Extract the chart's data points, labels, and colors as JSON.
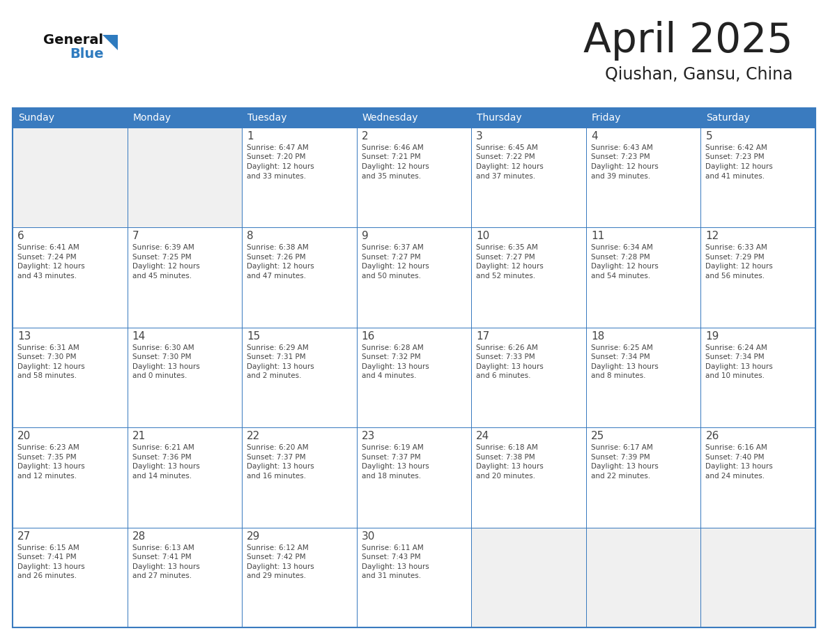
{
  "title": "April 2025",
  "subtitle": "Qiushan, Gansu, China",
  "days_of_week": [
    "Sunday",
    "Monday",
    "Tuesday",
    "Wednesday",
    "Thursday",
    "Friday",
    "Saturday"
  ],
  "header_bg": "#3a7bbf",
  "header_text": "#ffffff",
  "cell_bg_light": "#f0f0f0",
  "cell_bg_white": "#ffffff",
  "border_color": "#3a7bbf",
  "text_color": "#444444",
  "title_color": "#222222",
  "subtitle_color": "#222222",
  "logo_general_color": "#111111",
  "logo_blue_color": "#2e7bbf",
  "weeks": [
    [
      {
        "day": "",
        "sunrise": "",
        "sunset": "",
        "daylight": ""
      },
      {
        "day": "",
        "sunrise": "",
        "sunset": "",
        "daylight": ""
      },
      {
        "day": "1",
        "sunrise": "Sunrise: 6:47 AM",
        "sunset": "Sunset: 7:20 PM",
        "daylight": "Daylight: 12 hours\nand 33 minutes."
      },
      {
        "day": "2",
        "sunrise": "Sunrise: 6:46 AM",
        "sunset": "Sunset: 7:21 PM",
        "daylight": "Daylight: 12 hours\nand 35 minutes."
      },
      {
        "day": "3",
        "sunrise": "Sunrise: 6:45 AM",
        "sunset": "Sunset: 7:22 PM",
        "daylight": "Daylight: 12 hours\nand 37 minutes."
      },
      {
        "day": "4",
        "sunrise": "Sunrise: 6:43 AM",
        "sunset": "Sunset: 7:23 PM",
        "daylight": "Daylight: 12 hours\nand 39 minutes."
      },
      {
        "day": "5",
        "sunrise": "Sunrise: 6:42 AM",
        "sunset": "Sunset: 7:23 PM",
        "daylight": "Daylight: 12 hours\nand 41 minutes."
      }
    ],
    [
      {
        "day": "6",
        "sunrise": "Sunrise: 6:41 AM",
        "sunset": "Sunset: 7:24 PM",
        "daylight": "Daylight: 12 hours\nand 43 minutes."
      },
      {
        "day": "7",
        "sunrise": "Sunrise: 6:39 AM",
        "sunset": "Sunset: 7:25 PM",
        "daylight": "Daylight: 12 hours\nand 45 minutes."
      },
      {
        "day": "8",
        "sunrise": "Sunrise: 6:38 AM",
        "sunset": "Sunset: 7:26 PM",
        "daylight": "Daylight: 12 hours\nand 47 minutes."
      },
      {
        "day": "9",
        "sunrise": "Sunrise: 6:37 AM",
        "sunset": "Sunset: 7:27 PM",
        "daylight": "Daylight: 12 hours\nand 50 minutes."
      },
      {
        "day": "10",
        "sunrise": "Sunrise: 6:35 AM",
        "sunset": "Sunset: 7:27 PM",
        "daylight": "Daylight: 12 hours\nand 52 minutes."
      },
      {
        "day": "11",
        "sunrise": "Sunrise: 6:34 AM",
        "sunset": "Sunset: 7:28 PM",
        "daylight": "Daylight: 12 hours\nand 54 minutes."
      },
      {
        "day": "12",
        "sunrise": "Sunrise: 6:33 AM",
        "sunset": "Sunset: 7:29 PM",
        "daylight": "Daylight: 12 hours\nand 56 minutes."
      }
    ],
    [
      {
        "day": "13",
        "sunrise": "Sunrise: 6:31 AM",
        "sunset": "Sunset: 7:30 PM",
        "daylight": "Daylight: 12 hours\nand 58 minutes."
      },
      {
        "day": "14",
        "sunrise": "Sunrise: 6:30 AM",
        "sunset": "Sunset: 7:30 PM",
        "daylight": "Daylight: 13 hours\nand 0 minutes."
      },
      {
        "day": "15",
        "sunrise": "Sunrise: 6:29 AM",
        "sunset": "Sunset: 7:31 PM",
        "daylight": "Daylight: 13 hours\nand 2 minutes."
      },
      {
        "day": "16",
        "sunrise": "Sunrise: 6:28 AM",
        "sunset": "Sunset: 7:32 PM",
        "daylight": "Daylight: 13 hours\nand 4 minutes."
      },
      {
        "day": "17",
        "sunrise": "Sunrise: 6:26 AM",
        "sunset": "Sunset: 7:33 PM",
        "daylight": "Daylight: 13 hours\nand 6 minutes."
      },
      {
        "day": "18",
        "sunrise": "Sunrise: 6:25 AM",
        "sunset": "Sunset: 7:34 PM",
        "daylight": "Daylight: 13 hours\nand 8 minutes."
      },
      {
        "day": "19",
        "sunrise": "Sunrise: 6:24 AM",
        "sunset": "Sunset: 7:34 PM",
        "daylight": "Daylight: 13 hours\nand 10 minutes."
      }
    ],
    [
      {
        "day": "20",
        "sunrise": "Sunrise: 6:23 AM",
        "sunset": "Sunset: 7:35 PM",
        "daylight": "Daylight: 13 hours\nand 12 minutes."
      },
      {
        "day": "21",
        "sunrise": "Sunrise: 6:21 AM",
        "sunset": "Sunset: 7:36 PM",
        "daylight": "Daylight: 13 hours\nand 14 minutes."
      },
      {
        "day": "22",
        "sunrise": "Sunrise: 6:20 AM",
        "sunset": "Sunset: 7:37 PM",
        "daylight": "Daylight: 13 hours\nand 16 minutes."
      },
      {
        "day": "23",
        "sunrise": "Sunrise: 6:19 AM",
        "sunset": "Sunset: 7:37 PM",
        "daylight": "Daylight: 13 hours\nand 18 minutes."
      },
      {
        "day": "24",
        "sunrise": "Sunrise: 6:18 AM",
        "sunset": "Sunset: 7:38 PM",
        "daylight": "Daylight: 13 hours\nand 20 minutes."
      },
      {
        "day": "25",
        "sunrise": "Sunrise: 6:17 AM",
        "sunset": "Sunset: 7:39 PM",
        "daylight": "Daylight: 13 hours\nand 22 minutes."
      },
      {
        "day": "26",
        "sunrise": "Sunrise: 6:16 AM",
        "sunset": "Sunset: 7:40 PM",
        "daylight": "Daylight: 13 hours\nand 24 minutes."
      }
    ],
    [
      {
        "day": "27",
        "sunrise": "Sunrise: 6:15 AM",
        "sunset": "Sunset: 7:41 PM",
        "daylight": "Daylight: 13 hours\nand 26 minutes."
      },
      {
        "day": "28",
        "sunrise": "Sunrise: 6:13 AM",
        "sunset": "Sunset: 7:41 PM",
        "daylight": "Daylight: 13 hours\nand 27 minutes."
      },
      {
        "day": "29",
        "sunrise": "Sunrise: 6:12 AM",
        "sunset": "Sunset: 7:42 PM",
        "daylight": "Daylight: 13 hours\nand 29 minutes."
      },
      {
        "day": "30",
        "sunrise": "Sunrise: 6:11 AM",
        "sunset": "Sunset: 7:43 PM",
        "daylight": "Daylight: 13 hours\nand 31 minutes."
      },
      {
        "day": "",
        "sunrise": "",
        "sunset": "",
        "daylight": ""
      },
      {
        "day": "",
        "sunrise": "",
        "sunset": "",
        "daylight": ""
      },
      {
        "day": "",
        "sunrise": "",
        "sunset": "",
        "daylight": ""
      }
    ]
  ]
}
